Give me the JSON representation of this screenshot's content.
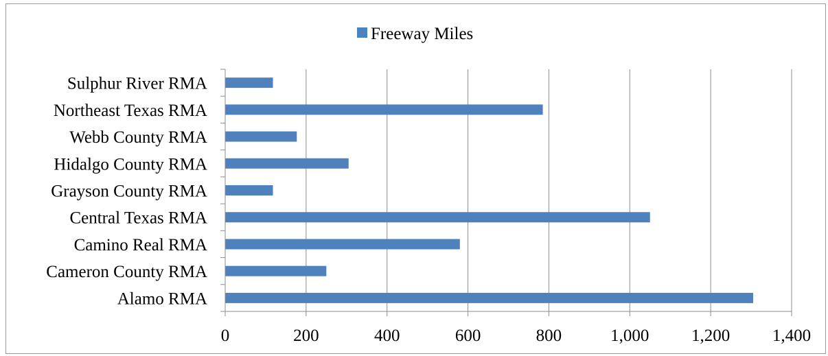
{
  "chart_data": {
    "type": "bar",
    "orientation": "horizontal",
    "categories": [
      "Alamo RMA",
      "Cameron County RMA",
      "Camino Real RMA",
      "Central Texas RMA",
      "Grayson County RMA",
      "Hidalgo County RMA",
      "Webb County RMA",
      "Northeast Texas RMA",
      "Sulphur River RMA"
    ],
    "series": [
      {
        "name": "Freeway Miles",
        "color": "#4f81bd",
        "values": [
          1305,
          250,
          580,
          1050,
          118,
          305,
          177,
          785,
          118
        ]
      }
    ],
    "xlim": [
      0,
      1400
    ],
    "xticks": [
      0,
      200,
      400,
      600,
      800,
      1000,
      1200,
      1400
    ],
    "xtick_labels": [
      "0",
      "200",
      "400",
      "600",
      "800",
      "1,000",
      "1,200",
      "1,400"
    ],
    "grid": "vertical",
    "legend_position": "top",
    "title": "",
    "xlabel": "",
    "ylabel": ""
  }
}
